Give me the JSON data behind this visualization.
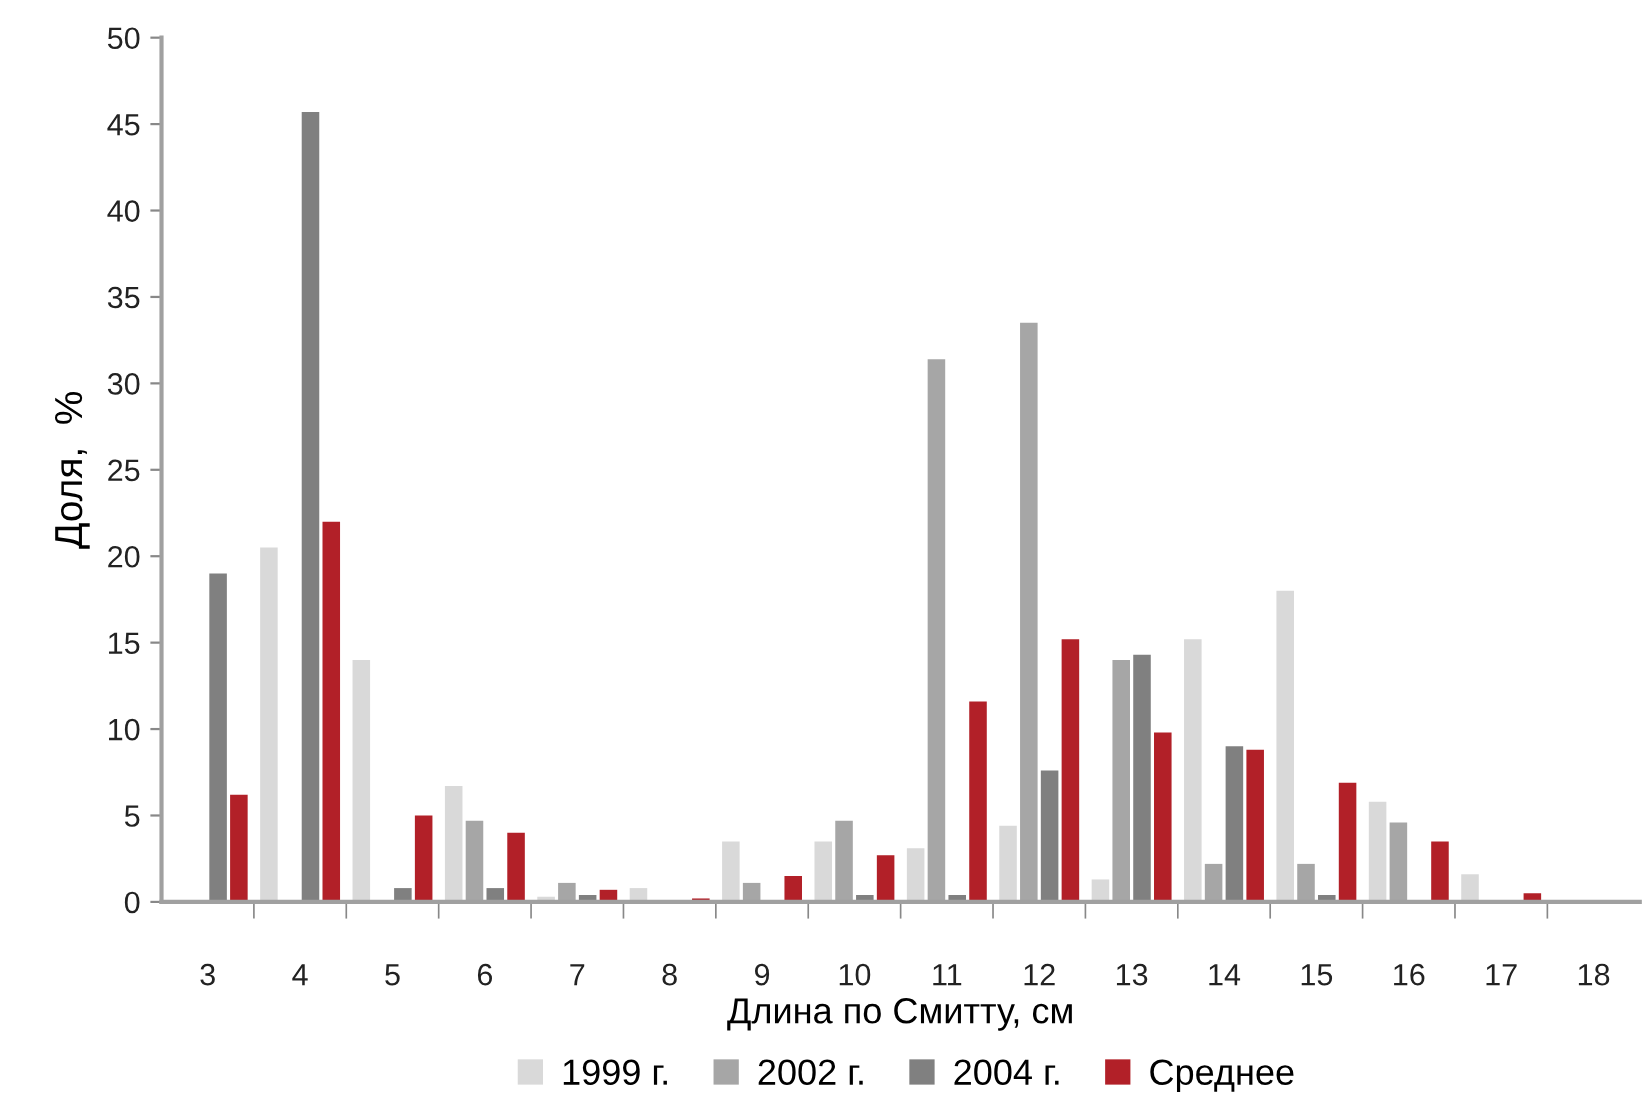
{
  "chart_data": {
    "type": "bar",
    "xlabel": "Длина по Смитту, см",
    "ylabel": "Доля,  %",
    "categories": [
      "3",
      "4",
      "5",
      "6",
      "7",
      "8",
      "9",
      "10",
      "11",
      "12",
      "13",
      "14",
      "15",
      "16",
      "17",
      "18"
    ],
    "series": [
      {
        "name": "1999 г.",
        "color": "#d9d9d9",
        "values": [
          0,
          20.5,
          14.0,
          6.7,
          0.3,
          0.8,
          3.5,
          3.5,
          3.1,
          4.4,
          1.3,
          15.2,
          18.0,
          5.8,
          1.6,
          0
        ]
      },
      {
        "name": "2002 г.",
        "color": "#a6a6a6",
        "values": [
          0,
          0,
          0,
          4.7,
          1.1,
          0,
          1.1,
          4.7,
          31.4,
          33.5,
          14.0,
          2.2,
          2.2,
          4.6,
          0,
          0
        ]
      },
      {
        "name": "2004 г.",
        "color": "#808080",
        "values": [
          19.0,
          45.7,
          0.8,
          0.8,
          0.4,
          0,
          0,
          0.4,
          0.4,
          7.6,
          14.3,
          9.0,
          0.4,
          0,
          0,
          0
        ]
      },
      {
        "name": "Среднее",
        "color": "#b22028",
        "values": [
          6.2,
          22.0,
          5.0,
          4.0,
          0.7,
          0.2,
          1.5,
          2.7,
          11.6,
          15.2,
          9.8,
          8.8,
          6.9,
          3.5,
          0.5,
          0
        ]
      }
    ],
    "ylim": [
      0,
      50
    ],
    "yticks": [
      0,
      5,
      10,
      15,
      20,
      25,
      30,
      35,
      40,
      45,
      50
    ],
    "grid": false,
    "legend": "bottom"
  }
}
